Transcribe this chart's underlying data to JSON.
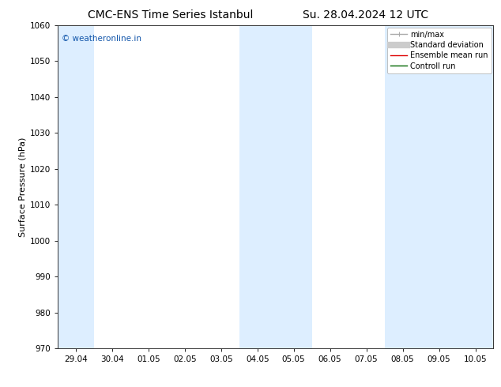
{
  "title_left": "CMC-ENS Time Series Istanbul",
  "title_right": "Su. 28.04.2024 12 UTC",
  "ylabel": "Surface Pressure (hPa)",
  "ylim": [
    970,
    1060
  ],
  "yticks": [
    970,
    980,
    990,
    1000,
    1010,
    1020,
    1030,
    1040,
    1050,
    1060
  ],
  "xtick_labels": [
    "29.04",
    "30.04",
    "01.05",
    "02.05",
    "03.05",
    "04.05",
    "05.05",
    "06.05",
    "07.05",
    "08.05",
    "09.05",
    "10.05"
  ],
  "n_xticks": 12,
  "shaded_band_indices": [
    0,
    5,
    6,
    9,
    10
  ],
  "shaded_color": "#ddeeff",
  "watermark": "© weatheronline.in",
  "watermark_color": "#1155aa",
  "legend_items": [
    {
      "label": "min/max",
      "color": "#aaaaaa",
      "lw": 1.0
    },
    {
      "label": "Standard deviation",
      "color": "#cccccc",
      "lw": 5
    },
    {
      "label": "Ensemble mean run",
      "color": "#dd0000",
      "lw": 1.0
    },
    {
      "label": "Controll run",
      "color": "#006600",
      "lw": 1.0
    }
  ],
  "bg_color": "#ffffff",
  "axes_bg_color": "#ffffff",
  "title_fontsize": 10,
  "ylabel_fontsize": 8,
  "tick_fontsize": 7.5,
  "watermark_fontsize": 7.5,
  "legend_fontsize": 7.0
}
